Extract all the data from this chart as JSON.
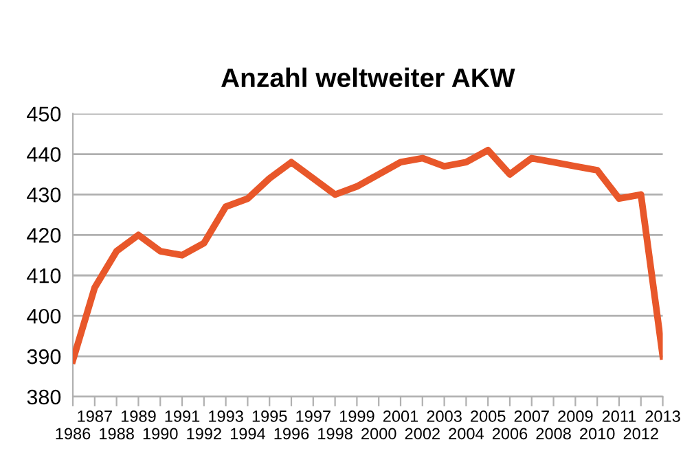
{
  "chart_data": {
    "type": "line",
    "title": "Anzahl weltweiter AKW",
    "categories": [
      "1986",
      "1987",
      "1988",
      "1989",
      "1990",
      "1991",
      "1992",
      "1993",
      "1994",
      "1995",
      "1996",
      "1997",
      "1998",
      "1999",
      "2000",
      "2001",
      "2002",
      "2003",
      "2004",
      "2005",
      "2006",
      "2007",
      "2008",
      "2009",
      "2010",
      "2011",
      "2012",
      "2013"
    ],
    "series": [
      {
        "color": "#e8572a",
        "values": [
          389,
          407,
          416,
          420,
          416,
          415,
          418,
          427,
          429,
          434,
          438,
          434,
          430,
          432,
          435,
          438,
          439,
          437,
          438,
          441,
          435,
          439,
          438,
          437,
          436,
          429,
          430,
          390
        ]
      }
    ],
    "ylim": [
      380,
      450
    ],
    "yticks": [
      380,
      390,
      400,
      410,
      420,
      430,
      440,
      450
    ],
    "grid": "y",
    "legend": false,
    "marker": "none",
    "line_style": "solid"
  }
}
